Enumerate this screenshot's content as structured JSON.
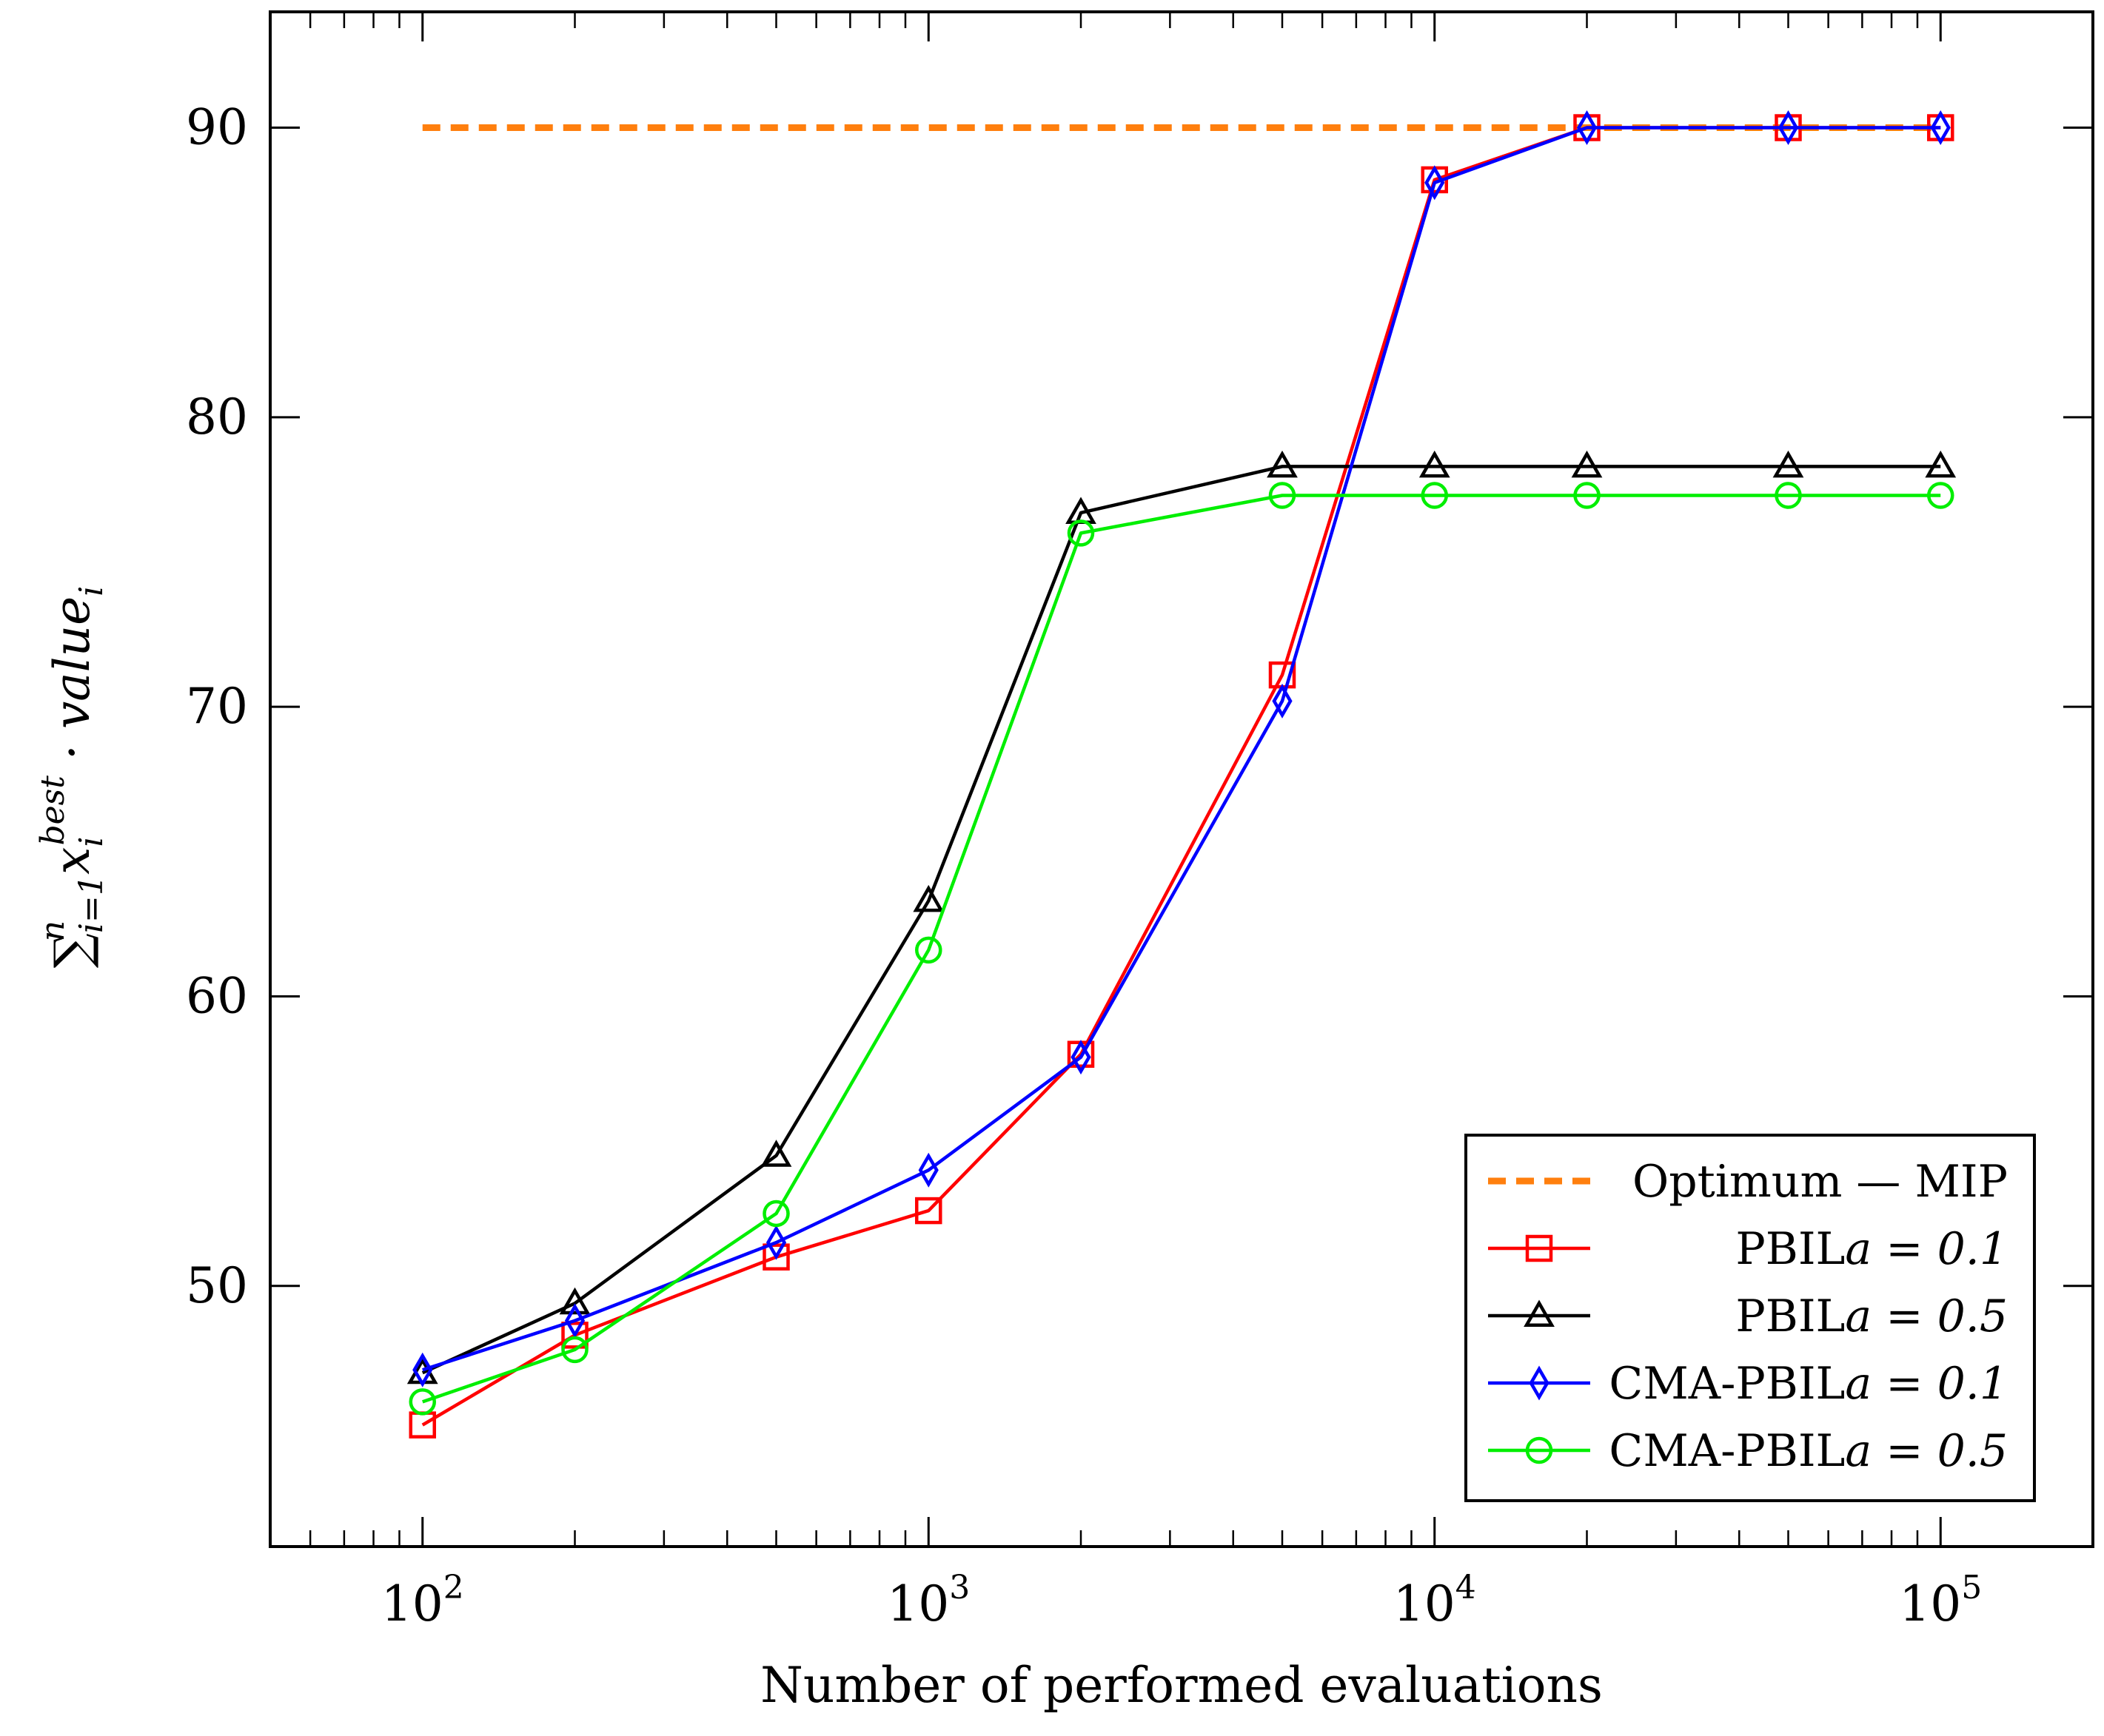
{
  "chart_data": {
    "type": "line",
    "title": "",
    "xlabel": "Number of performed evaluations",
    "ylabel": "∑ⁿᵢ₌₁ xᵢᵇᵉˢᵗ · valueᵢ",
    "ylabel_parts": {
      "sum": "∑",
      "sup_n": "n",
      "sub": "i=1",
      "x": "x",
      "x_sub": "i",
      "x_sup": "best",
      "dot": " · value",
      "tail_sub": "i"
    },
    "xscale": "log",
    "xlim": [
      50,
      200000
    ],
    "ylim": [
      41,
      94
    ],
    "x_ticks": [
      {
        "value": 100,
        "base": "10",
        "exp": "2"
      },
      {
        "value": 1000,
        "base": "10",
        "exp": "3"
      },
      {
        "value": 10000,
        "base": "10",
        "exp": "4"
      },
      {
        "value": 100000,
        "base": "10",
        "exp": "5"
      }
    ],
    "y_ticks": [
      {
        "value": 50,
        "label": "50"
      },
      {
        "value": 60,
        "label": "60"
      },
      {
        "value": 70,
        "label": "70"
      },
      {
        "value": 80,
        "label": "80"
      },
      {
        "value": 90,
        "label": "90"
      }
    ],
    "x": [
      100,
      200,
      500,
      1000,
      2000,
      5000,
      10000,
      20000,
      50000,
      100000
    ],
    "series": [
      {
        "name": "Optimum — MIP",
        "color": "#ff7f0e",
        "style": "dashed",
        "marker": "none",
        "x": [
          100,
          100000
        ],
        "values": [
          90,
          90
        ]
      },
      {
        "name": "PBIL",
        "param": "a = 0.1",
        "color": "#ff0000",
        "style": "solid",
        "marker": "square",
        "values": [
          45.2,
          48.3,
          51.0,
          52.6,
          58.0,
          71.1,
          88.2,
          90.0,
          90.0,
          90.0
        ]
      },
      {
        "name": "PBIL",
        "param": "a = 0.5",
        "color": "#000000",
        "style": "solid",
        "marker": "triangle",
        "values": [
          47.0,
          49.4,
          54.5,
          63.3,
          76.7,
          78.3,
          78.3,
          78.3,
          78.3,
          78.3
        ]
      },
      {
        "name": "CMA-PBIL",
        "param": "a = 0.1",
        "color": "#0000ff",
        "style": "solid",
        "marker": "diamond",
        "values": [
          47.1,
          48.8,
          51.5,
          54.0,
          57.9,
          70.2,
          88.1,
          90.0,
          90.0,
          90.0
        ]
      },
      {
        "name": "CMA-PBIL",
        "param": "a = 0.5",
        "color": "#00ee00",
        "style": "solid",
        "marker": "circle",
        "values": [
          46.0,
          47.8,
          52.5,
          61.6,
          76.0,
          77.3,
          77.3,
          77.3,
          77.3,
          77.3
        ]
      }
    ],
    "legend_position": "bottom-right",
    "grid": false
  }
}
